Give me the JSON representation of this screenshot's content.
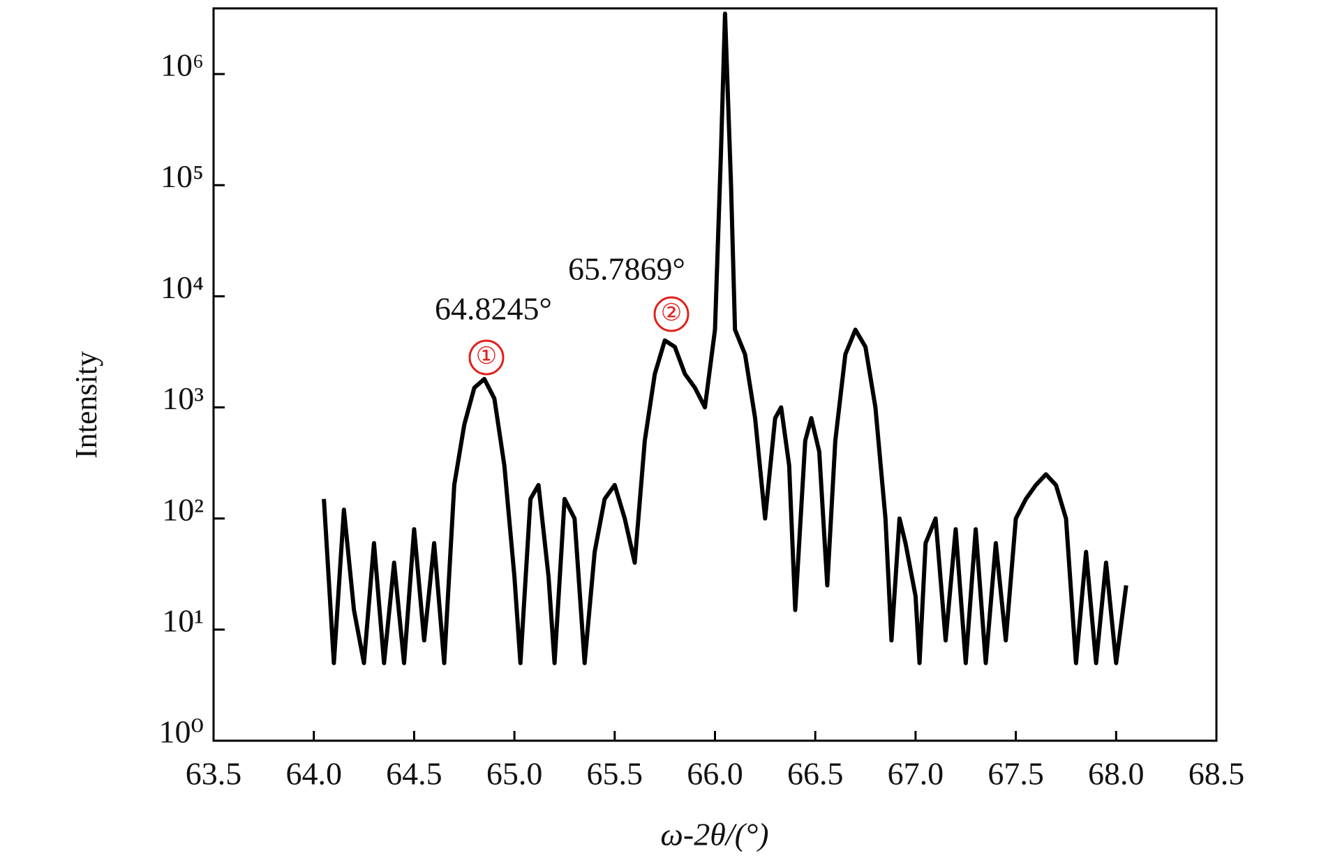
{
  "chart_data": {
    "type": "line",
    "x_label": "ω-2θ/(°)",
    "y_label": "Intensity",
    "log_scale_y": true,
    "grid": false,
    "xlim": [
      63.5,
      68.5
    ],
    "xticks": [
      {
        "value": 63.5,
        "label": "63.5"
      },
      {
        "value": 64,
        "label": "64.0"
      },
      {
        "value": 64.5,
        "label": "64.5"
      },
      {
        "value": 65,
        "label": "65.0"
      },
      {
        "value": 65.5,
        "label": "65.5"
      },
      {
        "value": 66,
        "label": "66.0"
      },
      {
        "value": 66.5,
        "label": "66.5"
      },
      {
        "value": 67,
        "label": "67.0"
      },
      {
        "value": 67.5,
        "label": "67.5"
      },
      {
        "value": 68,
        "label": "68.0"
      },
      {
        "value": 68.5,
        "label": "68.5"
      }
    ],
    "ylim": [
      1,
      3900000
    ],
    "yticks": [
      {
        "value": 1,
        "label": "10⁰"
      },
      {
        "value": 10,
        "label": "10¹"
      },
      {
        "value": 100,
        "label": "10²"
      },
      {
        "value": 1000,
        "label": "10³"
      },
      {
        "value": 10000,
        "label": "10⁴"
      },
      {
        "value": 100000,
        "label": "10⁵"
      },
      {
        "value": 1000000,
        "label": "10⁶"
      }
    ],
    "annotations": [
      {
        "text": "64.8245°",
        "marker": "①",
        "marker_color": "#e0201b"
      },
      {
        "text": "65.7869°",
        "marker": "②",
        "marker_color": "#e0201b"
      }
    ],
    "series": [
      {
        "color": "#000000",
        "x": [
          64.05,
          64.1,
          64.15,
          64.2,
          64.25,
          64.3,
          64.35,
          64.4,
          64.45,
          64.5,
          64.55,
          64.6,
          64.65,
          64.7,
          64.75,
          64.8,
          64.85,
          64.9,
          64.95,
          65.0,
          65.03,
          65.08,
          65.12,
          65.17,
          65.2,
          65.25,
          65.3,
          65.35,
          65.4,
          65.45,
          65.5,
          65.55,
          65.6,
          65.65,
          65.7,
          65.75,
          65.8,
          65.85,
          65.9,
          65.95,
          66.0,
          66.03,
          66.05,
          66.08,
          66.1,
          66.15,
          66.2,
          66.25,
          66.3,
          66.33,
          66.37,
          66.4,
          66.45,
          66.48,
          66.52,
          66.56,
          66.6,
          66.65,
          66.7,
          66.75,
          66.8,
          66.85,
          66.88,
          66.92,
          66.95,
          67.0,
          67.02,
          67.05,
          67.1,
          67.15,
          67.2,
          67.25,
          67.3,
          67.35,
          67.4,
          67.45,
          67.5,
          67.55,
          67.6,
          67.65,
          67.7,
          67.75,
          67.8,
          67.85,
          67.9,
          67.95,
          68.0,
          68.05
        ],
        "values": [
          150,
          5,
          120,
          15,
          5,
          60,
          5,
          40,
          5,
          80,
          8,
          60,
          5,
          200,
          700,
          1500,
          1800,
          1200,
          300,
          30,
          5,
          150,
          200,
          30,
          5,
          150,
          100,
          5,
          50,
          150,
          200,
          100,
          40,
          500,
          2000,
          4000,
          3500,
          2000,
          1500,
          1000,
          5000,
          200000,
          3500000,
          100000,
          5000,
          3000,
          800,
          100,
          800,
          1000,
          300,
          15,
          500,
          800,
          400,
          25,
          500,
          3000,
          5000,
          3500,
          1000,
          100,
          8,
          100,
          60,
          20,
          5,
          60,
          100,
          8,
          80,
          5,
          80,
          5,
          60,
          8,
          100,
          150,
          200,
          250,
          200,
          100,
          5,
          50,
          5,
          40,
          5,
          25
        ]
      }
    ]
  }
}
